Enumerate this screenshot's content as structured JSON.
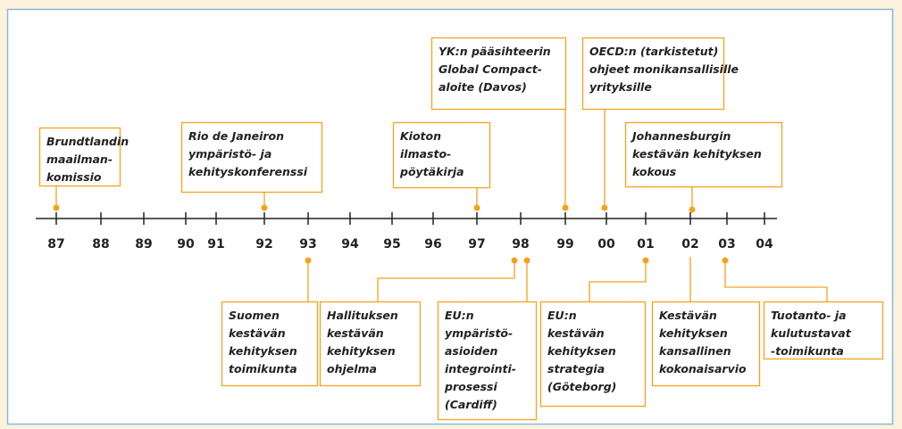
{
  "axis": {
    "labels": [
      "87",
      "88",
      "89",
      "90",
      "91",
      "92",
      "93",
      "94",
      "95",
      "96",
      "97",
      "98",
      "99",
      "00",
      "01",
      "02",
      "03",
      "04"
    ]
  },
  "events": [
    {
      "lines": [
        "Brundtlandin",
        "maailman-",
        "komissio"
      ]
    },
    {
      "lines": [
        "Rio de Janeiron",
        "ympäristö- ja",
        "kehityskonferenssi"
      ]
    },
    {
      "lines": [
        "Kioton",
        "ilmasto-",
        "pöytäkirja"
      ]
    },
    {
      "lines": [
        "YK:n pääsihteerin",
        "Global Compact-",
        "aloite (Davos)"
      ]
    },
    {
      "lines": [
        "OECD:n (tarkistetut)",
        "ohjeet monikansallisille",
        "yrityksille"
      ]
    },
    {
      "lines": [
        "Johannesburgin",
        "kestävän kehityksen",
        "kokous"
      ]
    },
    {
      "lines": [
        "Suomen",
        "kestävän",
        "kehityksen",
        "toimikunta"
      ]
    },
    {
      "lines": [
        "Hallituksen",
        "kestävän",
        "kehityksen",
        "ohjelma"
      ]
    },
    {
      "lines": [
        "EU:n",
        "ympäristö-",
        "asioiden",
        "integrointi-",
        "prosessi",
        "(Cardiff)"
      ]
    },
    {
      "lines": [
        "EU:n",
        "kestävän",
        "kehityksen",
        "strategia",
        "(Göteborg)"
      ]
    },
    {
      "lines": [
        "Kestävän",
        "kehityksen",
        "kansallinen",
        "kokonaisarvio"
      ]
    },
    {
      "lines": [
        "Tuotanto- ja",
        "kulutustavat",
        "-toimikunta"
      ]
    }
  ]
}
